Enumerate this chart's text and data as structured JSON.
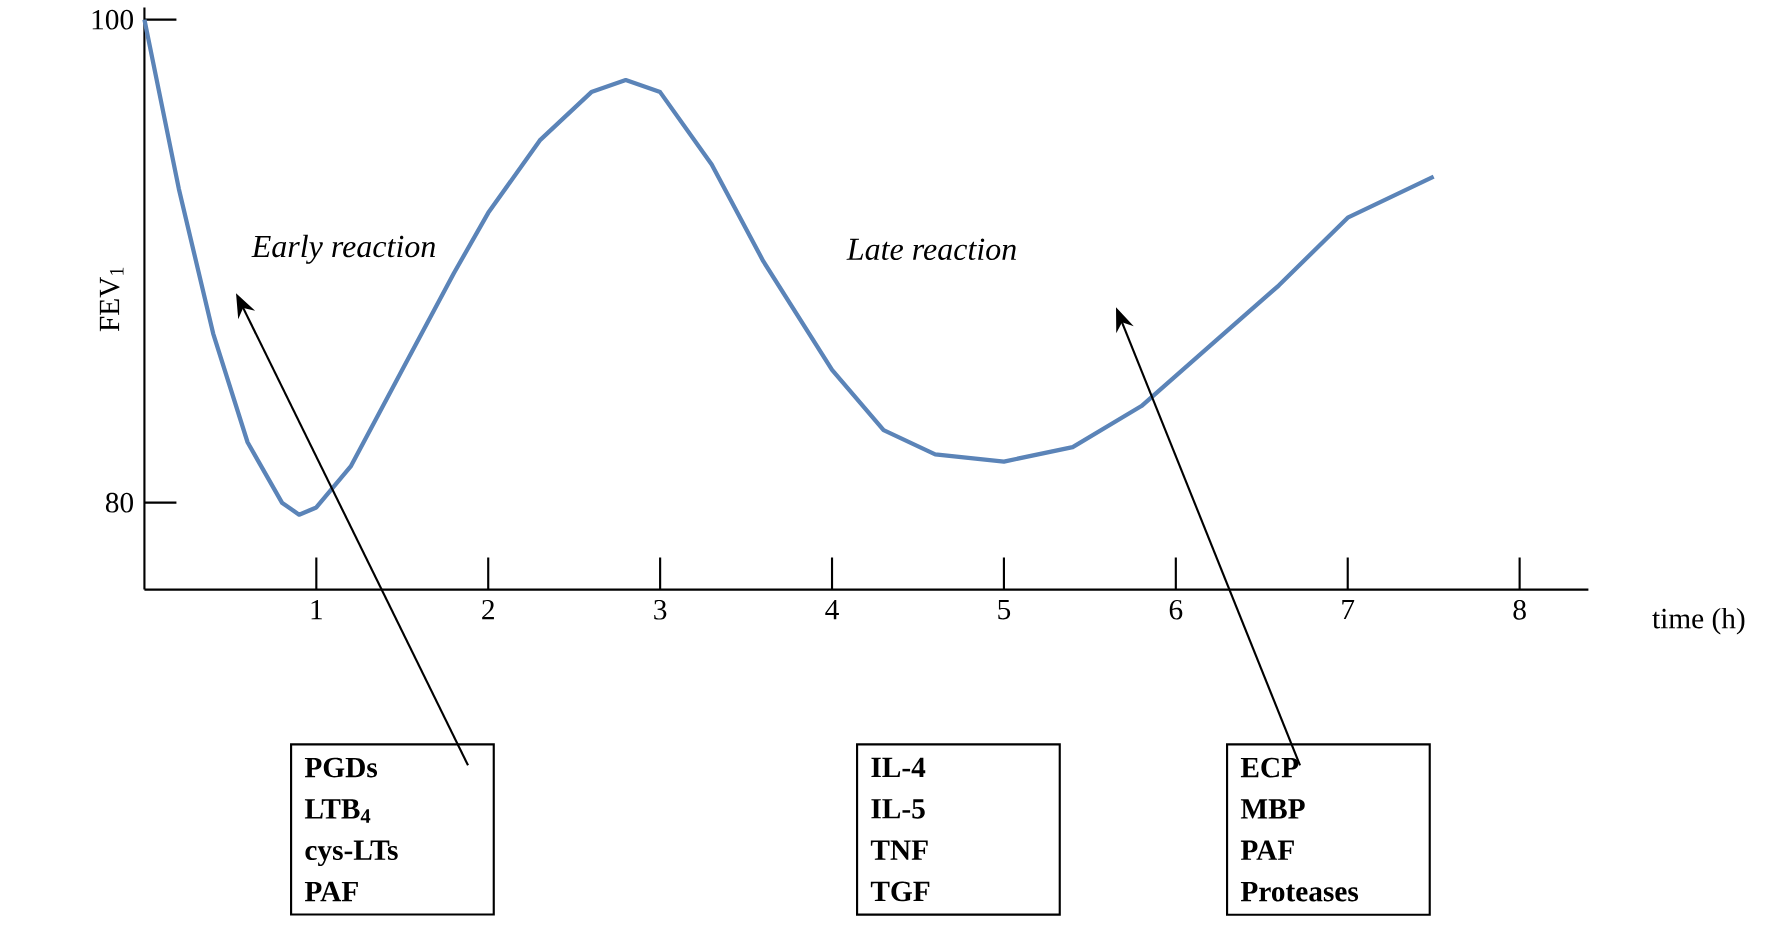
{
  "chart_data": {
    "type": "line",
    "ylabel": "FEV$_{1}$",
    "xlabel": "time (h)",
    "x": [
      0,
      0.2,
      0.4,
      0.6,
      0.8,
      0.9,
      1.0,
      1.2,
      1.5,
      1.8,
      2.0,
      2.3,
      2.6,
      2.8,
      3.0,
      3.3,
      3.6,
      4.0,
      4.3,
      4.6,
      5.0,
      5.4,
      5.8,
      6.2,
      6.6,
      7.0,
      7.5
    ],
    "values": [
      100,
      93,
      87,
      82.5,
      80,
      79.5,
      79.8,
      81.5,
      85.5,
      89.5,
      92,
      95,
      97,
      97.5,
      97,
      94,
      90,
      85.5,
      83,
      82,
      81.7,
      82.3,
      84,
      86.5,
      89,
      91.8,
      93.5
    ],
    "color": "#5b84b8",
    "xlim": [
      0,
      8.4
    ],
    "ylim": [
      76.4,
      100.5
    ],
    "xticks": [
      1,
      2,
      3,
      4,
      5,
      6,
      7,
      8
    ],
    "yticks": [
      80,
      100
    ],
    "grid": false,
    "marker": "none",
    "line_style": "solid",
    "annotations": [
      "Early reaction",
      "Late reaction",
      "PGDs",
      "LTB$_{4}$",
      "cys-LTs",
      "PAF",
      "IL-4",
      "IL-5",
      "TNF",
      "TGF",
      "ECP",
      "MBP",
      "PAF",
      "Proteases"
    ]
  }
}
